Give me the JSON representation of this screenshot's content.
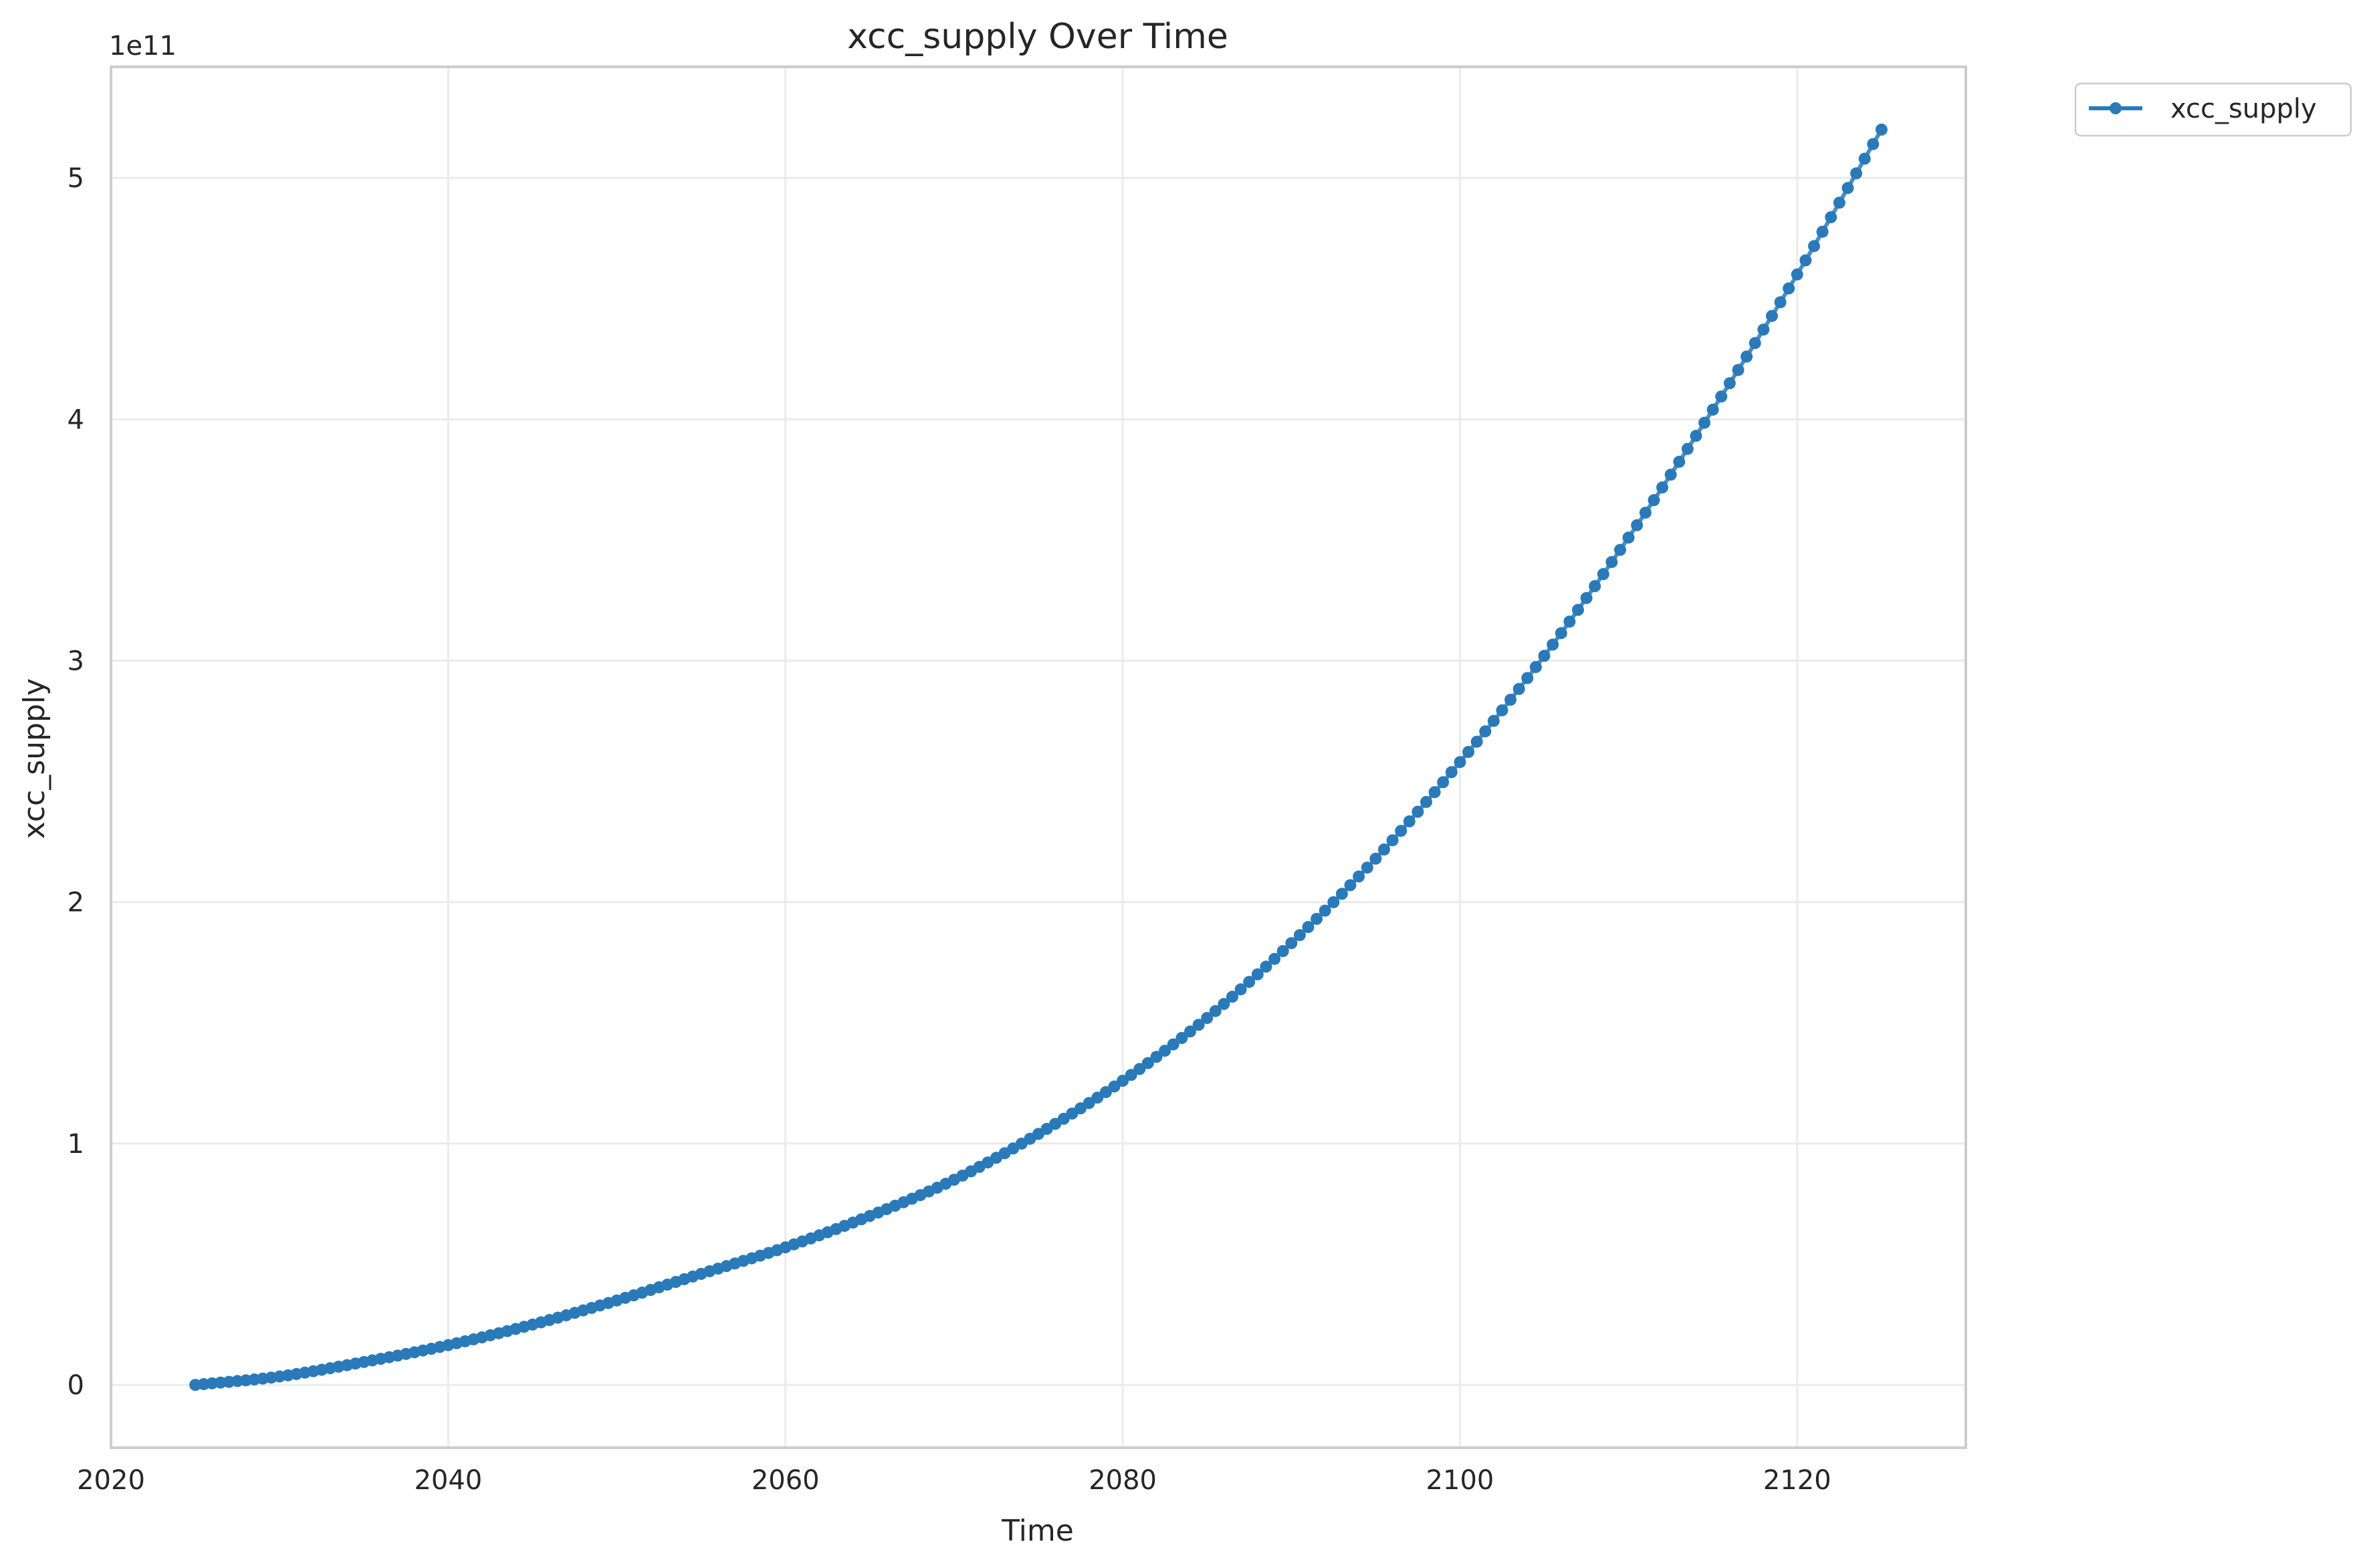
{
  "chart_data": {
    "type": "line",
    "title": "xcc_supply Over Time",
    "xlabel": "Time",
    "ylabel": "xcc_supply",
    "y_offset_label": "1e11",
    "xlim": [
      2020,
      2130
    ],
    "ylim": [
      -26000000000.0,
      546000000000.0
    ],
    "x_ticks": [
      2020,
      2040,
      2060,
      2080,
      2100,
      2120
    ],
    "x_tick_labels": [
      "2020",
      "2040",
      "2060",
      "2080",
      "2100",
      "2120"
    ],
    "y_ticks": [
      0,
      100000000000.0,
      200000000000.0,
      300000000000.0,
      400000000000.0,
      500000000000.0
    ],
    "y_tick_labels": [
      "0",
      "1",
      "2",
      "3",
      "4",
      "5"
    ],
    "grid": true,
    "legend_position": "outside-top-right",
    "colors": {
      "series": "#2a7ab9",
      "grid": "#ebebeb",
      "frame": "#cccccc",
      "text": "#262626"
    },
    "series": [
      {
        "name": "xcc_supply",
        "marker": "circle",
        "x": [
          2025,
          2030,
          2035,
          2040,
          2045,
          2050,
          2055,
          2060,
          2065,
          2070,
          2075,
          2080,
          2085,
          2090,
          2095,
          2100,
          2105,
          2110,
          2115,
          2120,
          2125
        ],
        "y": [
          0,
          3500000000.0,
          9500000000.0,
          16500000000.0,
          25000000000.0,
          35000000000.0,
          46000000000.0,
          57000000000.0,
          70000000000.0,
          85000000000.0,
          104000000000.0,
          126000000000.0,
          152000000000.0,
          183000000000.0,
          218000000000.0,
          258000000000.0,
          302000000000.0,
          351000000000.0,
          404000000000.0,
          460000000000.0,
          520000000000.0
        ]
      }
    ]
  }
}
